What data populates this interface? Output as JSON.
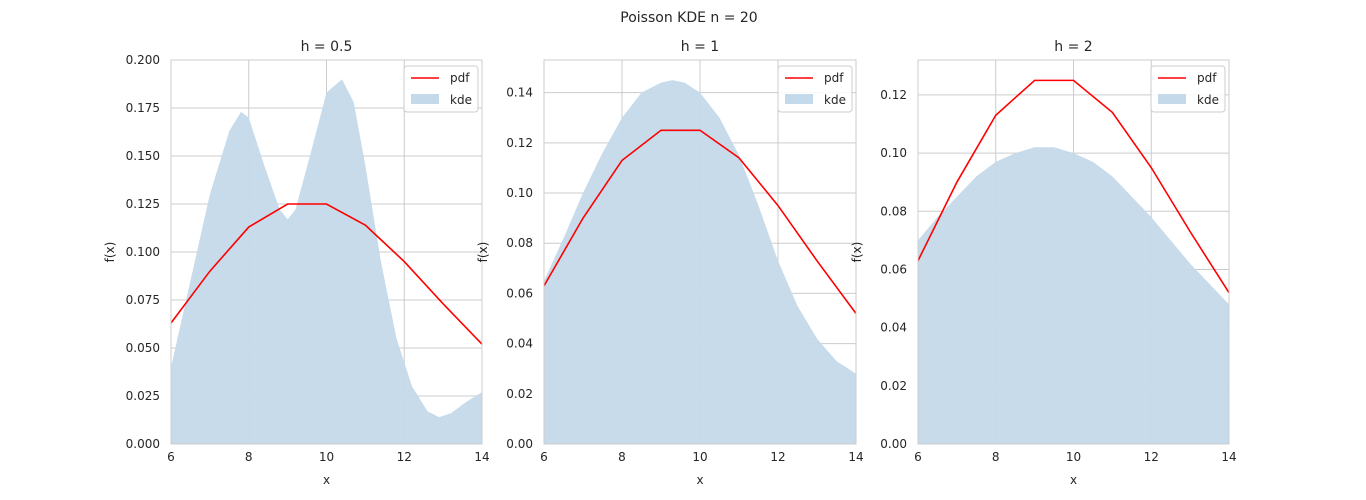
{
  "figure": {
    "title": "Poisson KDE n = 20"
  },
  "colors": {
    "pdf": "#ff0000",
    "kde": "#c4d9ea",
    "grid": "#cccccc",
    "spine": "#cccccc"
  },
  "chart_data": [
    {
      "type": "area",
      "title": "h = 0.5",
      "xlabel": "x",
      "ylabel": "f(x)",
      "xlim": [
        6,
        14
      ],
      "ylim": [
        0,
        0.2
      ],
      "xticks": [
        6,
        8,
        10,
        12,
        14
      ],
      "xtick_labels": [
        "6",
        "8",
        "10",
        "12",
        "14"
      ],
      "yticks": [
        0,
        0.025,
        0.05,
        0.075,
        0.1,
        0.125,
        0.15,
        0.175,
        0.2
      ],
      "ytick_labels": [
        "0.000",
        "0.025",
        "0.050",
        "0.075",
        "0.100",
        "0.125",
        "0.150",
        "0.175",
        "0.200"
      ],
      "grid": true,
      "legend": {
        "placement": "upper right",
        "entries": [
          "pdf",
          "kde"
        ]
      },
      "series": [
        {
          "name": "pdf",
          "kind": "line",
          "x": [
            6,
            7,
            8,
            9,
            10,
            11,
            12,
            13,
            14
          ],
          "y": [
            0.063,
            0.09,
            0.113,
            0.125,
            0.125,
            0.114,
            0.095,
            0.073,
            0.052
          ]
        },
        {
          "name": "kde",
          "kind": "area",
          "x": [
            6,
            6.5,
            7,
            7.5,
            7.8,
            8,
            8.4,
            8.8,
            9,
            9.2,
            9.6,
            10,
            10.4,
            10.7,
            11,
            11.4,
            11.8,
            12.2,
            12.6,
            12.9,
            13.2,
            13.6,
            14
          ],
          "y": [
            0.04,
            0.085,
            0.13,
            0.163,
            0.173,
            0.17,
            0.145,
            0.122,
            0.117,
            0.122,
            0.152,
            0.183,
            0.19,
            0.178,
            0.145,
            0.095,
            0.055,
            0.03,
            0.017,
            0.014,
            0.016,
            0.022,
            0.027
          ]
        }
      ]
    },
    {
      "type": "area",
      "title": "h = 1",
      "xlabel": "x",
      "ylabel": "f(x)",
      "xlim": [
        6,
        14
      ],
      "ylim": [
        0,
        0.153
      ],
      "xticks": [
        6,
        8,
        10,
        12,
        14
      ],
      "xtick_labels": [
        "6",
        "8",
        "10",
        "12",
        "14"
      ],
      "yticks": [
        0,
        0.02,
        0.04,
        0.06,
        0.08,
        0.1,
        0.12,
        0.14
      ],
      "ytick_labels": [
        "0.00",
        "0.02",
        "0.04",
        "0.06",
        "0.08",
        "0.10",
        "0.12",
        "0.14"
      ],
      "grid": true,
      "legend": {
        "placement": "upper right",
        "entries": [
          "pdf",
          "kde"
        ]
      },
      "series": [
        {
          "name": "pdf",
          "kind": "line",
          "x": [
            6,
            7,
            8,
            9,
            10,
            11,
            12,
            13,
            14
          ],
          "y": [
            0.063,
            0.09,
            0.113,
            0.125,
            0.125,
            0.114,
            0.095,
            0.073,
            0.052
          ]
        },
        {
          "name": "kde",
          "kind": "area",
          "x": [
            6,
            6.5,
            7,
            7.5,
            8,
            8.5,
            9,
            9.3,
            9.6,
            10,
            10.5,
            11,
            11.5,
            12,
            12.5,
            13,
            13.5,
            14
          ],
          "y": [
            0.065,
            0.082,
            0.1,
            0.116,
            0.13,
            0.14,
            0.144,
            0.145,
            0.144,
            0.14,
            0.13,
            0.115,
            0.095,
            0.073,
            0.055,
            0.042,
            0.033,
            0.028
          ]
        }
      ]
    },
    {
      "type": "area",
      "title": "h = 2",
      "xlabel": "x",
      "ylabel": "f(x)",
      "xlim": [
        6,
        14
      ],
      "ylim": [
        0,
        0.132
      ],
      "xticks": [
        6,
        8,
        10,
        12,
        14
      ],
      "xtick_labels": [
        "6",
        "8",
        "10",
        "12",
        "14"
      ],
      "yticks": [
        0,
        0.02,
        0.04,
        0.06,
        0.08,
        0.1,
        0.12
      ],
      "ytick_labels": [
        "0.00",
        "0.02",
        "0.04",
        "0.06",
        "0.08",
        "0.10",
        "0.12"
      ],
      "grid": true,
      "legend": {
        "placement": "upper right",
        "entries": [
          "pdf",
          "kde"
        ]
      },
      "series": [
        {
          "name": "pdf",
          "kind": "line",
          "x": [
            6,
            7,
            8,
            9,
            10,
            11,
            12,
            13,
            14
          ],
          "y": [
            0.063,
            0.09,
            0.113,
            0.125,
            0.125,
            0.114,
            0.095,
            0.073,
            0.052
          ]
        },
        {
          "name": "kde",
          "kind": "area",
          "x": [
            6,
            6.5,
            7,
            7.5,
            8,
            8.5,
            9,
            9.2,
            9.5,
            10,
            10.5,
            11,
            11.5,
            12,
            12.5,
            13,
            13.5,
            14
          ],
          "y": [
            0.07,
            0.078,
            0.085,
            0.092,
            0.097,
            0.1,
            0.102,
            0.102,
            0.102,
            0.1,
            0.097,
            0.092,
            0.085,
            0.078,
            0.07,
            0.062,
            0.055,
            0.048
          ]
        }
      ]
    }
  ]
}
